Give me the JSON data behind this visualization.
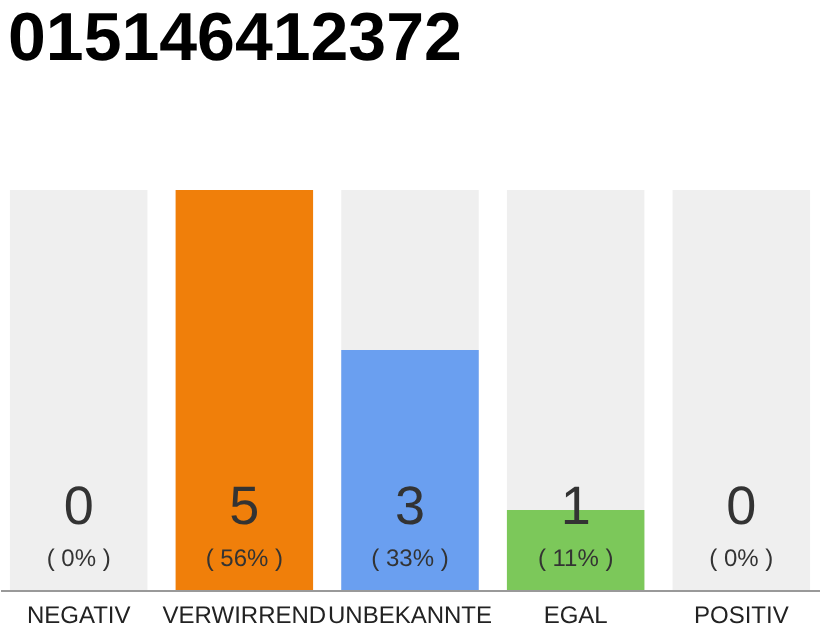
{
  "chart_data": {
    "type": "bar",
    "title": "015146412372",
    "categories": [
      "NEGATIV",
      "VERWIRREND",
      "UNBEKANNTE",
      "EGAL",
      "POSITIV"
    ],
    "values": [
      0,
      5,
      3,
      1,
      0
    ],
    "colors": [
      "#cccccc",
      "#f07f0a",
      "#6a9ff0",
      "#7cc85a",
      "#cccccc"
    ],
    "value_labels": [
      "0",
      "5",
      "3",
      "1",
      "0"
    ],
    "annotations": [
      "( 0% )",
      "( 56% )",
      "( 33% )",
      "( 11% )",
      "( 0% )"
    ],
    "tick_labels": "x",
    "bands": [
      {
        "axis": "x",
        "from": "NEGATIV",
        "to": "NEGATIV",
        "color": "#efefef"
      },
      {
        "axis": "x",
        "from": "UNBEKANNTE",
        "to": "UNBEKANNTE",
        "color": "#efefef"
      },
      {
        "axis": "x",
        "from": "EGAL",
        "to": "EGAL",
        "color": "#efefef"
      },
      {
        "axis": "x",
        "from": "POSITIV",
        "to": "POSITIV",
        "color": "#efefef"
      }
    ]
  }
}
